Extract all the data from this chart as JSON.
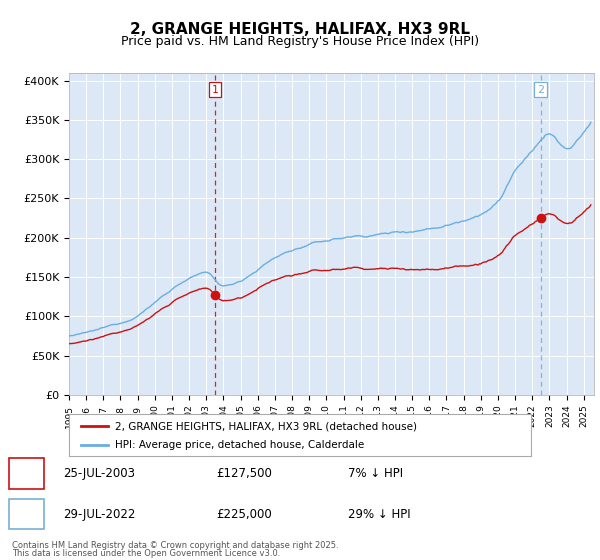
{
  "title": "2, GRANGE HEIGHTS, HALIFAX, HX3 9RL",
  "subtitle": "Price paid vs. HM Land Registry's House Price Index (HPI)",
  "title_fontsize": 11,
  "subtitle_fontsize": 9,
  "background_color": "#ffffff",
  "plot_bg_color": "#dce8f5",
  "grid_color": "#ffffff",
  "hpi_color": "#6aaee0",
  "price_color": "#cc1111",
  "marker_color": "#cc1111",
  "vline1_color": "#cc1111",
  "vline2_color": "#7aafd4",
  "ylim": [
    0,
    410000
  ],
  "yticks": [
    0,
    50000,
    100000,
    150000,
    200000,
    250000,
    300000,
    350000,
    400000
  ],
  "ytick_labels": [
    "£0",
    "£50K",
    "£100K",
    "£150K",
    "£200K",
    "£250K",
    "£300K",
    "£350K",
    "£400K"
  ],
  "legend_label1": "2, GRANGE HEIGHTS, HALIFAX, HX3 9RL (detached house)",
  "legend_label2": "HPI: Average price, detached house, Calderdale",
  "footer1": "Contains HM Land Registry data © Crown copyright and database right 2025.",
  "footer2": "This data is licensed under the Open Government Licence v3.0.",
  "table_row1": [
    "1",
    "25-JUL-2003",
    "£127,500",
    "7% ↓ HPI"
  ],
  "table_row2": [
    "2",
    "29-JUL-2022",
    "£225,000",
    "29% ↓ HPI"
  ],
  "start_year": 1995,
  "end_year": 2025,
  "purchase1_year": 2003,
  "purchase1_month": 7,
  "purchase1_price": 127500,
  "purchase2_year": 2022,
  "purchase2_month": 7,
  "purchase2_price": 225000
}
